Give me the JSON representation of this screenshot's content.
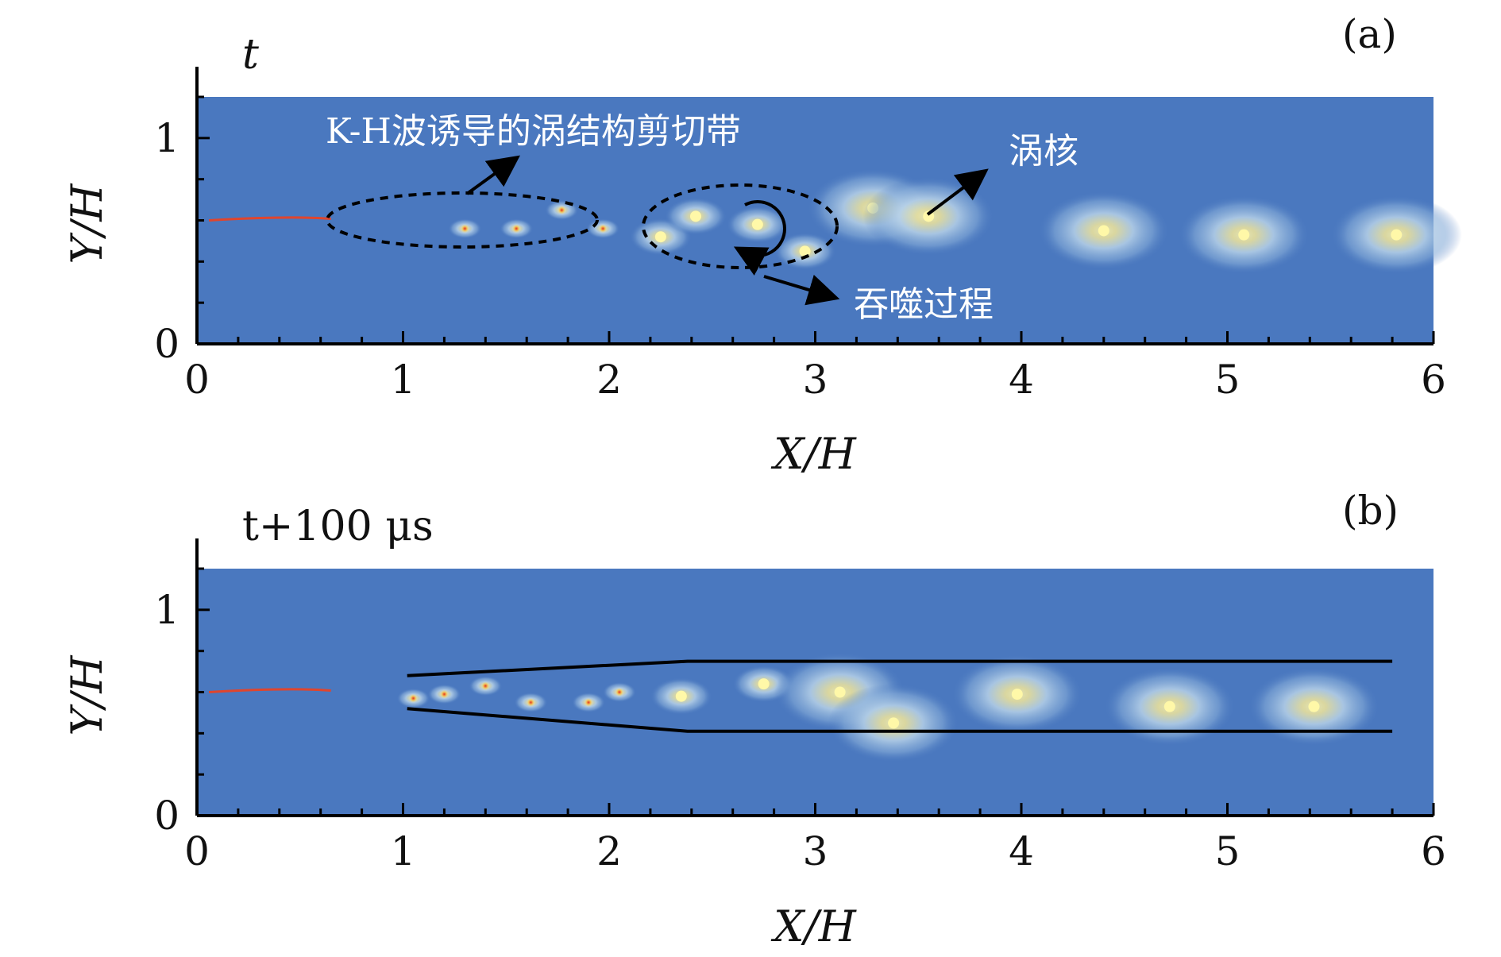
{
  "chart_data": [
    {
      "type": "heatmap",
      "panel_label": "(a)",
      "time_label": "t",
      "xlabel": "X/H",
      "ylabel": "Y/H",
      "xlim": [
        0,
        6
      ],
      "ylim": [
        0,
        1.2
      ],
      "x_ticks": [
        "0",
        "1",
        "2",
        "3",
        "4",
        "5",
        "6"
      ],
      "y_ticks": [
        "0",
        "1"
      ],
      "background_color": "#4a78bf",
      "jet_centerline_y": 0.6,
      "vortex_cores": [
        {
          "x": 1.3,
          "y": 0.56
        },
        {
          "x": 1.55,
          "y": 0.56
        },
        {
          "x": 1.77,
          "y": 0.65
        },
        {
          "x": 1.97,
          "y": 0.56
        },
        {
          "x": 2.25,
          "y": 0.52
        },
        {
          "x": 2.42,
          "y": 0.62
        },
        {
          "x": 2.72,
          "y": 0.58
        },
        {
          "x": 2.95,
          "y": 0.45
        },
        {
          "x": 3.28,
          "y": 0.66
        },
        {
          "x": 3.55,
          "y": 0.62
        },
        {
          "x": 4.4,
          "y": 0.55
        },
        {
          "x": 5.08,
          "y": 0.53
        },
        {
          "x": 5.82,
          "y": 0.53
        }
      ],
      "annotations": [
        {
          "text": "K-H波诱导的涡结构剪切带",
          "x": 1.75,
          "y": 1.02
        },
        {
          "text": "涡核",
          "x": 3.85,
          "y": 0.93
        },
        {
          "text": "吞噬过程",
          "x": 3.58,
          "y": 0.18
        }
      ]
    },
    {
      "type": "heatmap",
      "panel_label": "(b)",
      "time_label": "t+100 μs",
      "xlabel": "X/H",
      "ylabel": "Y/H",
      "xlim": [
        0,
        6
      ],
      "ylim": [
        0,
        1.2
      ],
      "x_ticks": [
        "0",
        "1",
        "2",
        "3",
        "4",
        "5",
        "6"
      ],
      "y_ticks": [
        "0",
        "1"
      ],
      "background_color": "#4a78bf",
      "jet_centerline_y": 0.6,
      "vortex_cores": [
        {
          "x": 1.05,
          "y": 0.57
        },
        {
          "x": 1.2,
          "y": 0.59
        },
        {
          "x": 1.4,
          "y": 0.63
        },
        {
          "x": 1.62,
          "y": 0.55
        },
        {
          "x": 1.9,
          "y": 0.55
        },
        {
          "x": 2.05,
          "y": 0.6
        },
        {
          "x": 2.35,
          "y": 0.58
        },
        {
          "x": 2.75,
          "y": 0.64
        },
        {
          "x": 3.12,
          "y": 0.6
        },
        {
          "x": 3.38,
          "y": 0.45
        },
        {
          "x": 3.98,
          "y": 0.59
        },
        {
          "x": 4.72,
          "y": 0.53
        },
        {
          "x": 5.42,
          "y": 0.53
        }
      ],
      "envelope": {
        "upper": [
          [
            1.02,
            0.68
          ],
          [
            2.38,
            0.75
          ],
          [
            5.8,
            0.75
          ]
        ],
        "lower": [
          [
            1.02,
            0.52
          ],
          [
            2.38,
            0.41
          ],
          [
            5.8,
            0.41
          ]
        ]
      }
    }
  ]
}
